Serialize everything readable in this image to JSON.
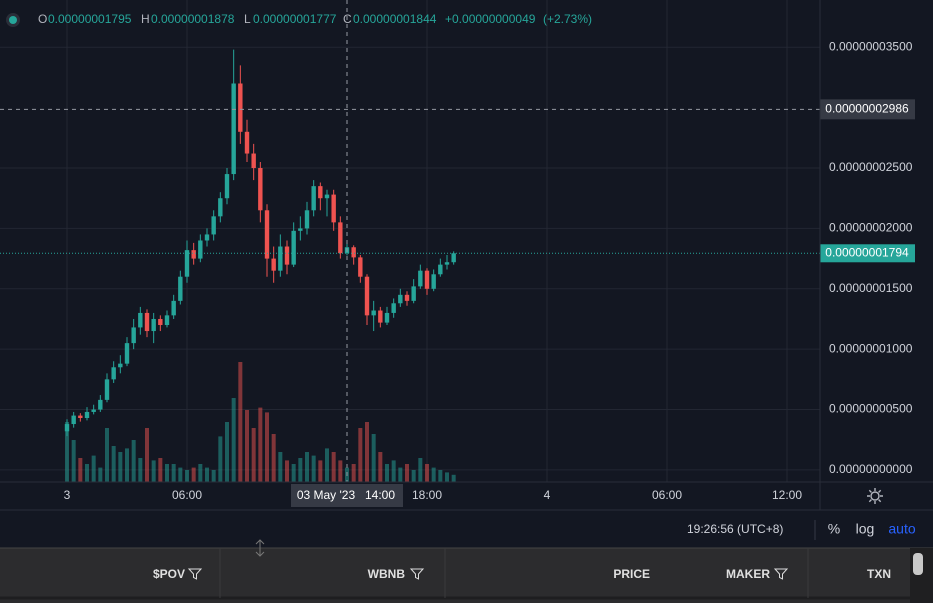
{
  "chart_data": {
    "type": "candlestick",
    "x": [
      0,
      20,
      40,
      60,
      80,
      100,
      120,
      140,
      160,
      180,
      200,
      220,
      240,
      260,
      280,
      300,
      320,
      340,
      360,
      380,
      400,
      420,
      440,
      460,
      480,
      500,
      520,
      540,
      560,
      580,
      600,
      620,
      640,
      660,
      680,
      700,
      720,
      740,
      760,
      780,
      800,
      820,
      840,
      860,
      880,
      900,
      920,
      940,
      960,
      980,
      1000,
      1020,
      1040,
      1060,
      1080,
      1100,
      1120,
      1140,
      1160
    ],
    "open": [
      3.2e-09,
      3.8e-09,
      4.5e-09,
      4.3e-09,
      4.8e-09,
      5e-09,
      5.8e-09,
      7.5e-09,
      8.5e-09,
      8.8e-09,
      1.05e-08,
      1.18e-08,
      1.3e-08,
      1.15e-08,
      1.25e-08,
      1.2e-08,
      1.28e-08,
      1.4e-08,
      1.6e-08,
      1.82e-08,
      1.75e-08,
      1.9e-08,
      1.95e-08,
      2.1e-08,
      2.25e-08,
      2.45e-08,
      3.2e-08,
      2.8e-08,
      2.62e-08,
      2.5e-08,
      2.15e-08,
      1.75e-08,
      1.65e-08,
      1.85e-08,
      1.7e-08,
      1.98e-08,
      2e-08,
      2.15e-08,
      2.35e-08,
      2.25e-08,
      2.28e-08,
      2.05e-08,
      1.795e-08,
      1.844e-08,
      1.76e-08,
      1.6e-08,
      1.28e-08,
      1.32e-08,
      1.22e-08,
      1.3e-08,
      1.38e-08,
      1.45e-08,
      1.4e-08,
      1.52e-08,
      1.65e-08,
      1.5e-08,
      1.62e-08,
      1.7e-08,
      1.72e-08
    ],
    "high": [
      4.2e-09,
      4.8e-09,
      4.7e-09,
      5.2e-09,
      5.4e-09,
      6.2e-09,
      8e-09,
      9e-09,
      9.5e-09,
      1.1e-08,
      1.25e-08,
      1.35e-08,
      1.33e-08,
      1.3e-08,
      1.28e-08,
      1.32e-08,
      1.45e-08,
      1.65e-08,
      1.9e-08,
      1.88e-08,
      1.95e-08,
      2e-08,
      2.15e-08,
      2.3e-08,
      2.5e-08,
      3.48e-08,
      3.35e-08,
      2.9e-08,
      2.7e-08,
      2.55e-08,
      2.2e-08,
      1.85e-08,
      1.95e-08,
      1.9e-08,
      2.05e-08,
      2.1e-08,
      2.22e-08,
      2.4e-08,
      2.38e-08,
      2.32e-08,
      2.32e-08,
      2.1e-08,
      1.878e-08,
      1.86e-08,
      1.78e-08,
      1.62e-08,
      1.4e-08,
      1.35e-08,
      1.35e-08,
      1.42e-08,
      1.5e-08,
      1.48e-08,
      1.58e-08,
      1.7e-08,
      1.67e-08,
      1.66e-08,
      1.75e-08,
      1.78e-08,
      1.81e-08
    ],
    "low": [
      2.8e-09,
      3.5e-09,
      4e-09,
      4.1e-09,
      4.6e-09,
      4.8e-09,
      5.6e-09,
      7.2e-09,
      8e-09,
      8.6e-09,
      1e-08,
      1.12e-08,
      1.1e-08,
      1.05e-08,
      1.15e-08,
      1.18e-08,
      1.25e-08,
      1.37e-08,
      1.55e-08,
      1.7e-08,
      1.72e-08,
      1.85e-08,
      1.9e-08,
      2.05e-08,
      2.2e-08,
      2.4e-08,
      2.7e-08,
      2.55e-08,
      2.4e-08,
      2.05e-08,
      1.6e-08,
      1.55e-08,
      1.6e-08,
      1.62e-08,
      1.68e-08,
      1.9e-08,
      1.95e-08,
      2.1e-08,
      2.15e-08,
      2.1e-08,
      1.98e-08,
      1.75e-08,
      1.777e-08,
      1.7e-08,
      1.55e-08,
      1.2e-08,
      1.15e-08,
      1.18e-08,
      1.2e-08,
      1.26e-08,
      1.35e-08,
      1.36e-08,
      1.38e-08,
      1.5e-08,
      1.45e-08,
      1.48e-08,
      1.6e-08,
      1.66e-08,
      1.7e-08
    ],
    "close": [
      3.8e-09,
      4.5e-09,
      4.3e-09,
      4.8e-09,
      5e-09,
      5.8e-09,
      7.5e-09,
      8.5e-09,
      8.8e-09,
      1.05e-08,
      1.18e-08,
      1.3e-08,
      1.15e-08,
      1.25e-08,
      1.2e-08,
      1.28e-08,
      1.4e-08,
      1.6e-08,
      1.82e-08,
      1.75e-08,
      1.9e-08,
      1.95e-08,
      2.1e-08,
      2.25e-08,
      2.45e-08,
      3.2e-08,
      2.8e-08,
      2.62e-08,
      2.5e-08,
      2.15e-08,
      1.75e-08,
      1.65e-08,
      1.85e-08,
      1.7e-08,
      1.98e-08,
      2e-08,
      2.15e-08,
      2.35e-08,
      2.25e-08,
      2.28e-08,
      2.05e-08,
      1.795e-08,
      1.844e-08,
      1.76e-08,
      1.6e-08,
      1.28e-08,
      1.32e-08,
      1.22e-08,
      1.3e-08,
      1.38e-08,
      1.45e-08,
      1.4e-08,
      1.52e-08,
      1.65e-08,
      1.5e-08,
      1.62e-08,
      1.7e-08,
      1.72e-08,
      1.794e-08
    ],
    "volume": [
      50,
      35,
      20,
      15,
      22,
      12,
      45,
      30,
      25,
      28,
      35,
      20,
      45,
      18,
      20,
      15,
      15,
      12,
      10,
      12,
      15,
      12,
      10,
      38,
      50,
      70,
      100,
      60,
      45,
      62,
      58,
      40,
      25,
      18,
      15,
      20,
      25,
      22,
      18,
      28,
      25,
      18,
      12,
      15,
      45,
      50,
      40,
      25,
      15,
      18,
      12,
      15,
      10,
      20,
      15,
      12,
      10,
      8,
      6
    ],
    "up_color": "#26a69a",
    "down_color": "#ef5350",
    "xlim": [
      -201,
      2259
    ],
    "ylim": [
      -1e-09,
      3.85e-08
    ],
    "xticks": [
      {
        "value": 0,
        "label": "3"
      },
      {
        "value": 360,
        "label": "06:00"
      },
      {
        "value": 1080,
        "label": "18:00"
      },
      {
        "value": 1440,
        "label": "4"
      },
      {
        "value": 1800,
        "label": "06:00"
      },
      {
        "value": 2160,
        "label": "12:00"
      }
    ],
    "yticks": [
      {
        "value": 0,
        "label": "0.00000000000"
      },
      {
        "value": 5e-09,
        "label": "0.00000000500"
      },
      {
        "value": 1e-08,
        "label": "0.00000001000"
      },
      {
        "value": 1.5e-08,
        "label": "0.00000001500"
      },
      {
        "value": 2e-08,
        "label": "0.00000002000"
      },
      {
        "value": 2.5e-08,
        "label": "0.00000002500"
      },
      {
        "value": 3.5e-08,
        "label": "0.00000003500"
      }
    ],
    "grid": true,
    "crosshair": {
      "x": 840,
      "date": "03 May '23",
      "time": "14:00",
      "price": {
        "value": 2.986e-08,
        "label": "0.00000002986"
      }
    },
    "last_price": {
      "value": 1.794e-08,
      "label": "0.00000001794"
    },
    "ohlc_legend": {
      "o": "O",
      "open": "0.00000001795",
      "h": "H",
      "high": "0.00000001878",
      "l": "L",
      "low": "0.00000001777",
      "c": "C",
      "close": "0.00000001844",
      "change": "+0.00000000049",
      "percent": "(+2.73%)"
    }
  },
  "toolbar": {
    "clock": "19:26:56 (UTC+8)",
    "percent": "%",
    "log": "log",
    "auto": "auto"
  },
  "table": {
    "columns": [
      "$POV",
      "WBNB",
      "PRICE",
      "MAKER",
      "TXN"
    ]
  }
}
